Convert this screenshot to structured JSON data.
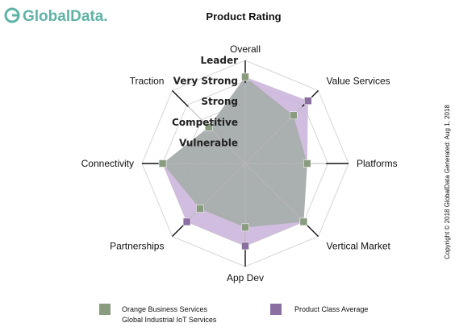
{
  "brand": {
    "name": "GlobalData."
  },
  "copyright": "Copyright © 2018 GlobalData Generated: Aug 1, 2018",
  "colors": {
    "company_fill": "#9aaa9a",
    "company_marker": "#8a9c7f",
    "average_fill": "#c9b2d9",
    "average_marker": "#8a6fa0",
    "ring_stroke": "#d6d6d6",
    "axis_stroke": "#111111",
    "brand": "#5fb3a6"
  },
  "chart_data": {
    "type": "radar",
    "title": "Product Rating",
    "axes": [
      "Overall",
      "Value Services",
      "Platforms",
      "Vertical Market",
      "App Dev",
      "Partnerships",
      "Connectivity",
      "Traction"
    ],
    "levels": [
      "Vulnerable",
      "Competitive",
      "Strong",
      "Very Strong",
      "Leader"
    ],
    "scale": [
      0,
      5
    ],
    "series": [
      {
        "name": "Product Class Average",
        "values": [
          4.2,
          4.3,
          3.0,
          4.0,
          4.0,
          4.0,
          4.0,
          2.5
        ]
      },
      {
        "name": "Orange Business Services Global Industrial IoT Services",
        "values": [
          4.2,
          3.3,
          3.0,
          4.0,
          3.1,
          3.1,
          4.0,
          2.5
        ]
      }
    ],
    "legend": {
      "position": "bottom",
      "entries": [
        {
          "line1": "Orange Business Services",
          "line2": "Global Industrial IoT Services",
          "series": 1
        },
        {
          "line1": "Product Class Average",
          "line2": "",
          "series": 0
        }
      ]
    }
  }
}
